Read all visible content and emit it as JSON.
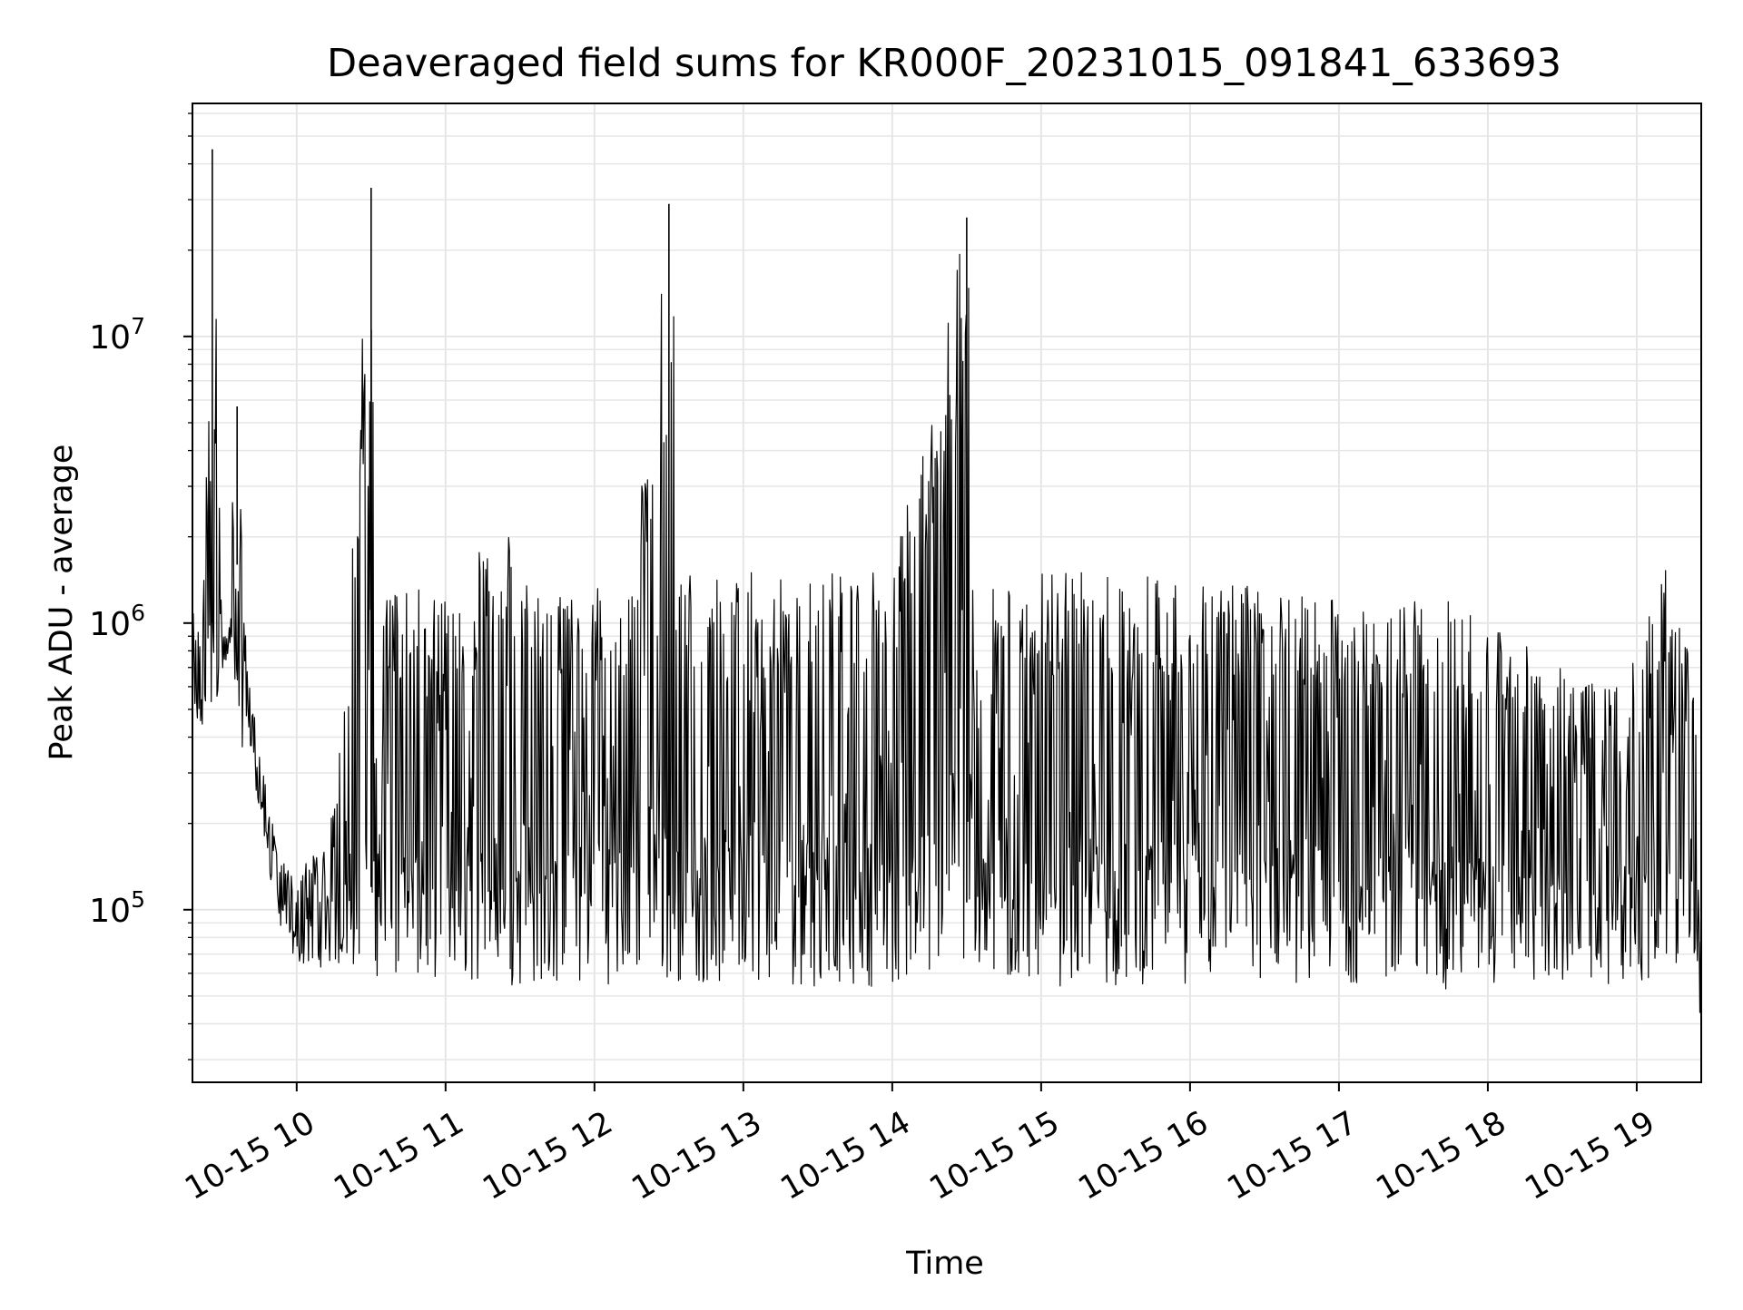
{
  "chart_data": {
    "type": "line",
    "title": "Deaveraged field sums for KR000F_20231015_091841_633693",
    "xlabel": "Time",
    "ylabel": "Peak ADU - average",
    "x_ticks": [
      "10-15 10",
      "10-15 11",
      "10-15 12",
      "10-15 13",
      "10-15 14",
      "10-15 15",
      "10-15 16",
      "10-15 17",
      "10-15 18",
      "10-15 19"
    ],
    "x_tick_times": [
      "2023-10-15 10:00",
      "2023-10-15 11:00",
      "2023-10-15 12:00",
      "2023-10-15 13:00",
      "2023-10-15 14:00",
      "2023-10-15 15:00",
      "2023-10-15 16:00",
      "2023-10-15 17:00",
      "2023-10-15 18:00",
      "2023-10-15 19:00"
    ],
    "y_scale": "log",
    "y_ticks": [
      {
        "label_base": "10",
        "label_exp": "5",
        "value": 100000
      },
      {
        "label_base": "10",
        "label_exp": "6",
        "value": 1000000
      },
      {
        "label_base": "10",
        "label_exp": "7",
        "value": 10000000
      }
    ],
    "xlim": [
      "2023-10-15 09:18",
      "2023-10-15 19:26"
    ],
    "ylim": [
      25000,
      65000000
    ],
    "grid": true,
    "line_color": "#000000",
    "grid_color": "#e6e6e6",
    "series": [
      {
        "x": [
          "2023-10-15 09:18",
          "2023-10-15 09:22",
          "2023-10-15 09:26",
          "2023-10-15 09:30",
          "2023-10-15 09:33",
          "2023-10-15 09:36",
          "2023-10-15 09:40",
          "2023-10-15 09:44",
          "2023-10-15 09:48",
          "2023-10-15 09:52",
          "2023-10-15 09:56",
          "2023-10-15 10:00",
          "2023-10-15 10:15",
          "2023-10-15 10:30",
          "2023-10-15 10:33",
          "2023-10-15 10:45",
          "2023-10-15 11:00",
          "2023-10-15 11:24",
          "2023-10-15 11:30",
          "2023-10-15 11:45",
          "2023-10-15 12:00",
          "2023-10-15 12:15",
          "2023-10-15 12:30",
          "2023-10-15 12:33",
          "2023-10-15 12:45",
          "2023-10-15 13:00",
          "2023-10-15 13:30",
          "2023-10-15 14:00",
          "2023-10-15 14:30",
          "2023-10-15 14:32",
          "2023-10-15 15:00",
          "2023-10-15 15:30",
          "2023-10-15 16:00",
          "2023-10-15 16:30",
          "2023-10-15 17:00",
          "2023-10-15 17:15",
          "2023-10-15 17:30",
          "2023-10-15 17:45",
          "2023-10-15 18:00",
          "2023-10-15 18:15",
          "2023-10-15 18:30",
          "2023-10-15 18:45",
          "2023-10-15 19:00",
          "2023-10-15 19:15",
          "2023-10-15 19:26"
        ],
        "upper": [
          1100000,
          900000,
          45000000,
          900000,
          1100000,
          5700000,
          700000,
          450000,
          300000,
          160000,
          140000,
          130000,
          220000,
          33000000,
          1200000,
          1300000,
          1350000,
          2300000,
          1400000,
          1400000,
          1400000,
          1450000,
          29000000,
          1500000,
          1500000,
          1500000,
          1500000,
          1500000,
          26000000,
          1500000,
          1500000,
          1500000,
          1500000,
          1450000,
          1300000,
          1000000,
          1200000,
          1200000,
          1000000,
          850000,
          700000,
          600000,
          800000,
          1900000,
          400000
        ],
        "lower": [
          380000,
          400000,
          500000,
          650000,
          750000,
          800000,
          420000,
          250000,
          150000,
          95000,
          75000,
          65000,
          62000,
          60000,
          58000,
          57000,
          56000,
          55000,
          54000,
          54000,
          55000,
          55000,
          56000,
          56000,
          55000,
          54000,
          54000,
          54000,
          53000,
          53000,
          54000,
          54000,
          55000,
          55000,
          55000,
          55000,
          52000,
          52000,
          55000,
          55000,
          55000,
          55000,
          55000,
          50000,
          40000
        ]
      }
    ]
  }
}
